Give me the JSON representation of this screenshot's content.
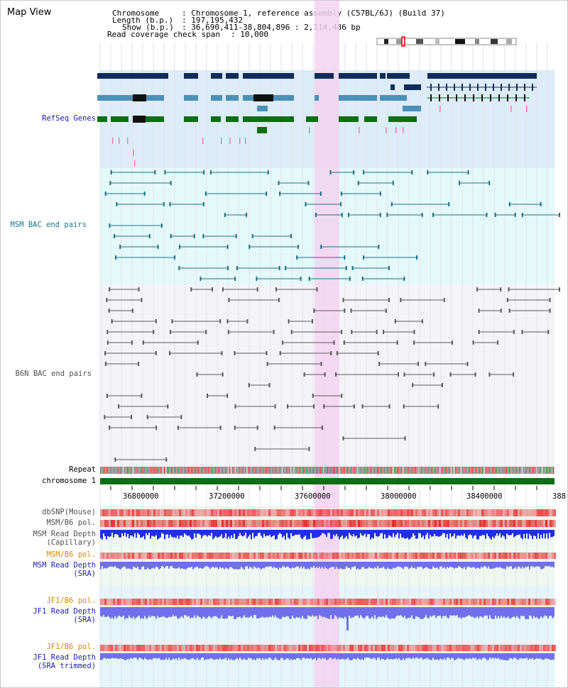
{
  "title": "Map View",
  "header": {
    "chromosome_key": "Chromosome",
    "chromosome_val": ": Chromosome 1, reference assembly (C57BL/6J) (Build 37)",
    "length_key": "Length (b.p.)",
    "length_val": ": 197,195,432",
    "show_key": "Show (b.p.)",
    "show_val": ": 36,690,411-38,804,896 : 2,114,486 bp",
    "coverage_key": "Read coverage check span",
    "coverage_val": ": 10,000"
  },
  "tracks": {
    "refseq": "RefSeq Genes",
    "msm_bac": "MSM BAC end pairs",
    "b6n_bac": "B6N BAC end pairs",
    "repeat": "Repeat",
    "chromosome": "chromosome 1",
    "dbsnp": "dbSNP(Mouse)",
    "msm_b6_pol": "MSM/B6 pol.",
    "msm_read_depth_cap_1": "MSM Read Depth",
    "msm_read_depth_cap_2": "(Capillary)",
    "msm_b6_pol_2": "MSM/B6 pol.",
    "msm_read_depth_sra_1": "MSM Read Depth",
    "msm_read_depth_sra_2": "(SRA)",
    "jf1_b6_pol": "JF1/B6 pol.",
    "jf1_read_depth_sra_1": "JF1 Read Depth",
    "jf1_read_depth_sra_2": "(SRA)",
    "jf1_b6_pol_2": "JF1/B6 pol.",
    "jf1_read_depth_trim_1": "JF1 Read Depth",
    "jf1_read_depth_trim_2": "(SRA trimmed)"
  },
  "axis": {
    "ticks": [
      "36800000",
      "37200000",
      "37600000",
      "38000000",
      "38400000",
      "388"
    ]
  },
  "colors": {
    "refseq_bg": "#dcecf8",
    "msm_bac_bg": "#e4fafa",
    "b6n_bg": "#f4f4f8",
    "highlight": "#f5d2f0",
    "refseq_label": "#1c1cb4",
    "msm_label": "#147890",
    "b6n_label": "#505050",
    "orange_label": "#d28c00",
    "navy_label": "#1c1cb4"
  }
}
